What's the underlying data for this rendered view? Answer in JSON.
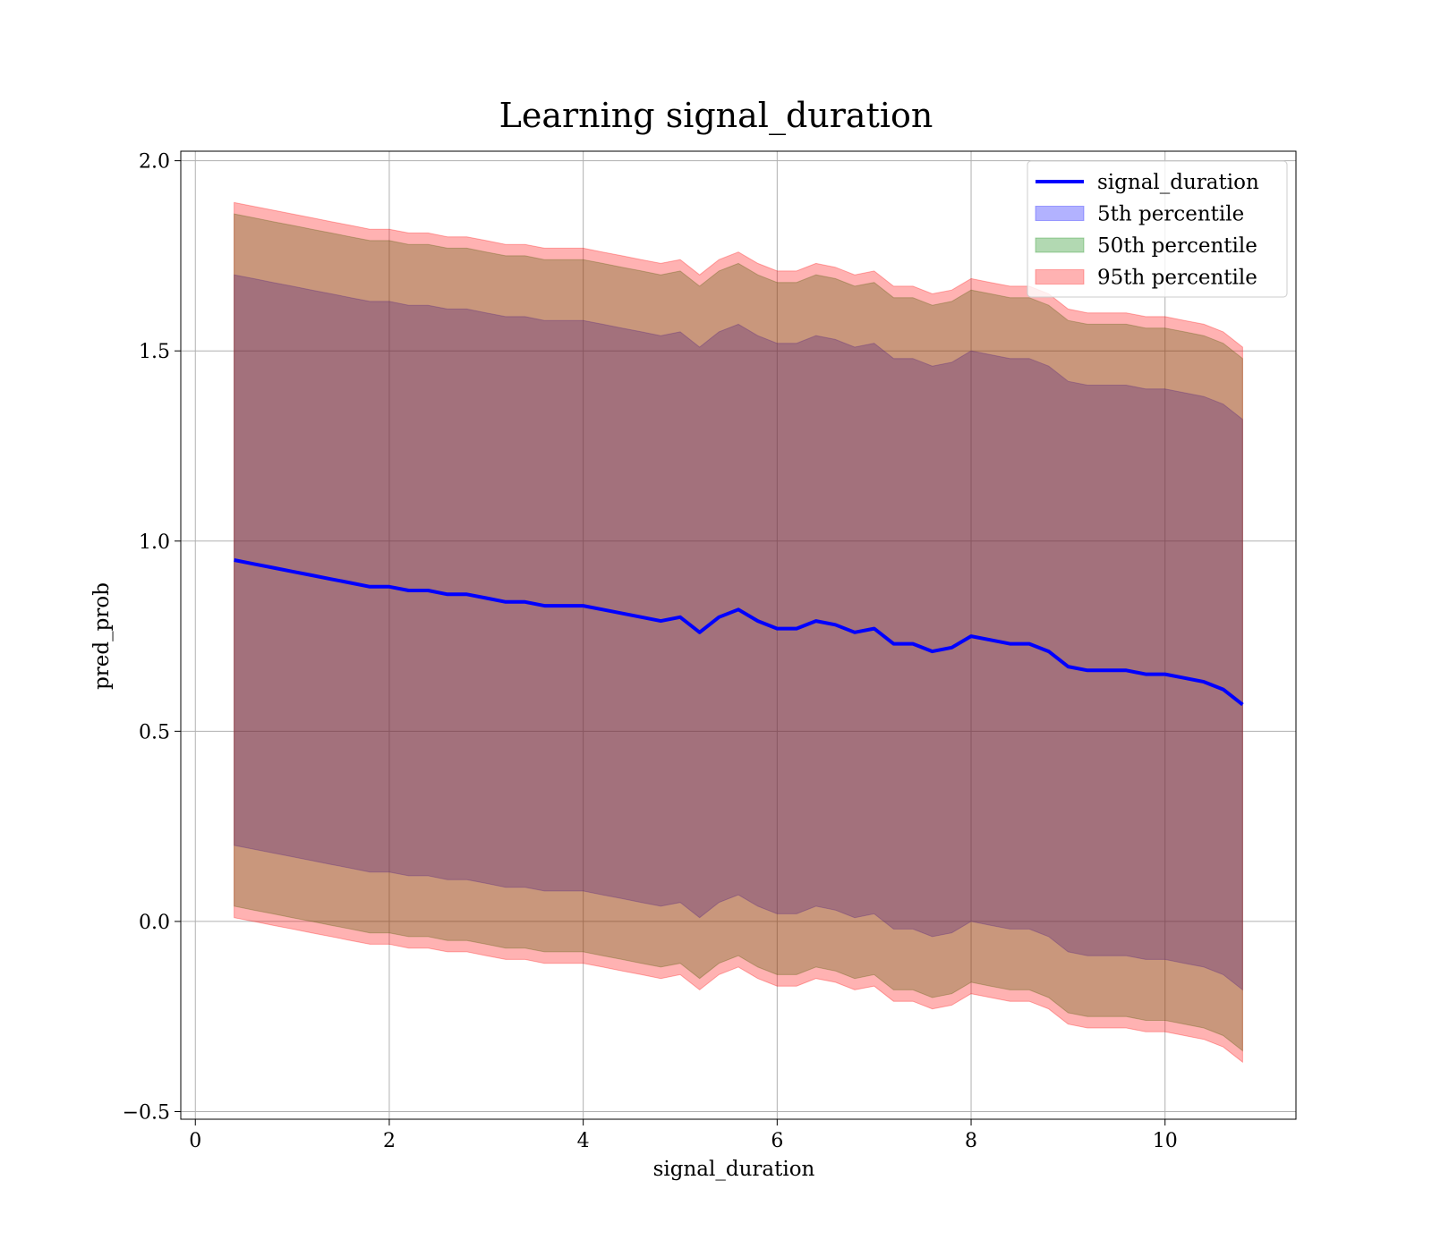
{
  "chart_data": {
    "type": "area",
    "title": "Learning signal_duration",
    "xlabel": "signal_duration",
    "ylabel": "pred_prob",
    "xlim": [
      -0.15,
      11.35
    ],
    "ylim": [
      -0.52,
      2.025
    ],
    "xticks": [
      0,
      2,
      4,
      6,
      8,
      10
    ],
    "xtick_labels": [
      "0",
      "2",
      "4",
      "6",
      "8",
      "10"
    ],
    "yticks": [
      -0.5,
      0.0,
      0.5,
      1.0,
      1.5,
      2.0
    ],
    "ytick_labels": [
      "−0.5",
      "0.0",
      "0.5",
      "1.0",
      "1.5",
      "2.0"
    ],
    "grid": true,
    "legend_position": "top-right",
    "x": [
      0.4,
      0.6,
      0.8,
      1.0,
      1.2,
      1.4,
      1.6,
      1.8,
      2.0,
      2.2,
      2.4,
      2.6,
      2.8,
      3.0,
      3.2,
      3.4,
      3.6,
      3.8,
      4.0,
      4.2,
      4.4,
      4.6,
      4.8,
      5.0,
      5.2,
      5.4,
      5.6,
      5.8,
      6.0,
      6.2,
      6.4,
      6.6,
      6.8,
      7.0,
      7.2,
      7.4,
      7.6,
      7.8,
      8.0,
      8.2,
      8.4,
      8.6,
      8.8,
      9.0,
      9.2,
      9.4,
      9.6,
      9.8,
      10.0,
      10.2,
      10.4,
      10.6,
      10.8
    ],
    "series": [
      {
        "name": "signal_duration",
        "kind": "line",
        "color": "#0000ff",
        "values": [
          0.95,
          0.94,
          0.93,
          0.92,
          0.91,
          0.9,
          0.89,
          0.88,
          0.88,
          0.87,
          0.87,
          0.86,
          0.86,
          0.85,
          0.84,
          0.84,
          0.83,
          0.83,
          0.83,
          0.82,
          0.81,
          0.8,
          0.79,
          0.8,
          0.76,
          0.8,
          0.82,
          0.79,
          0.77,
          0.77,
          0.79,
          0.78,
          0.76,
          0.77,
          0.73,
          0.73,
          0.71,
          0.72,
          0.75,
          0.74,
          0.73,
          0.73,
          0.71,
          0.67,
          0.66,
          0.66,
          0.66,
          0.65,
          0.65,
          0.64,
          0.63,
          0.61,
          0.57
        ]
      },
      {
        "name": "5th percentile",
        "kind": "band",
        "color": "#0000ff",
        "alpha": 0.3,
        "upper": [
          1.7,
          1.69,
          1.68,
          1.67,
          1.66,
          1.65,
          1.64,
          1.63,
          1.63,
          1.62,
          1.62,
          1.61,
          1.61,
          1.6,
          1.59,
          1.59,
          1.58,
          1.58,
          1.58,
          1.57,
          1.56,
          1.55,
          1.54,
          1.55,
          1.51,
          1.55,
          1.57,
          1.54,
          1.52,
          1.52,
          1.54,
          1.53,
          1.51,
          1.52,
          1.48,
          1.48,
          1.46,
          1.47,
          1.5,
          1.49,
          1.48,
          1.48,
          1.46,
          1.42,
          1.41,
          1.41,
          1.41,
          1.4,
          1.4,
          1.39,
          1.38,
          1.36,
          1.32
        ],
        "lower": [
          0.2,
          0.19,
          0.18,
          0.17,
          0.16,
          0.15,
          0.14,
          0.13,
          0.13,
          0.12,
          0.12,
          0.11,
          0.11,
          0.1,
          0.09,
          0.09,
          0.08,
          0.08,
          0.08,
          0.07,
          0.06,
          0.05,
          0.04,
          0.05,
          0.01,
          0.05,
          0.07,
          0.04,
          0.02,
          0.02,
          0.04,
          0.03,
          0.01,
          0.02,
          -0.02,
          -0.02,
          -0.04,
          -0.03,
          0.0,
          -0.01,
          -0.02,
          -0.02,
          -0.04,
          -0.08,
          -0.09,
          -0.09,
          -0.09,
          -0.1,
          -0.1,
          -0.11,
          -0.12,
          -0.14,
          -0.18
        ]
      },
      {
        "name": "50th percentile",
        "kind": "band",
        "color": "#008000",
        "alpha": 0.3,
        "upper": [
          1.86,
          1.85,
          1.84,
          1.83,
          1.82,
          1.81,
          1.8,
          1.79,
          1.79,
          1.78,
          1.78,
          1.77,
          1.77,
          1.76,
          1.75,
          1.75,
          1.74,
          1.74,
          1.74,
          1.73,
          1.72,
          1.71,
          1.7,
          1.71,
          1.67,
          1.71,
          1.73,
          1.7,
          1.68,
          1.68,
          1.7,
          1.69,
          1.67,
          1.68,
          1.64,
          1.64,
          1.62,
          1.63,
          1.66,
          1.65,
          1.64,
          1.64,
          1.62,
          1.58,
          1.57,
          1.57,
          1.57,
          1.56,
          1.56,
          1.55,
          1.54,
          1.52,
          1.48
        ],
        "lower": [
          0.04,
          0.03,
          0.02,
          0.01,
          0.0,
          -0.01,
          -0.02,
          -0.03,
          -0.03,
          -0.04,
          -0.04,
          -0.05,
          -0.05,
          -0.06,
          -0.07,
          -0.07,
          -0.08,
          -0.08,
          -0.08,
          -0.09,
          -0.1,
          -0.11,
          -0.12,
          -0.11,
          -0.15,
          -0.11,
          -0.09,
          -0.12,
          -0.14,
          -0.14,
          -0.12,
          -0.13,
          -0.15,
          -0.14,
          -0.18,
          -0.18,
          -0.2,
          -0.19,
          -0.16,
          -0.17,
          -0.18,
          -0.18,
          -0.2,
          -0.24,
          -0.25,
          -0.25,
          -0.25,
          -0.26,
          -0.26,
          -0.27,
          -0.28,
          -0.3,
          -0.34
        ]
      },
      {
        "name": "95th percentile",
        "kind": "band",
        "color": "#ff0000",
        "alpha": 0.3,
        "upper": [
          1.89,
          1.88,
          1.87,
          1.86,
          1.85,
          1.84,
          1.83,
          1.82,
          1.82,
          1.81,
          1.81,
          1.8,
          1.8,
          1.79,
          1.78,
          1.78,
          1.77,
          1.77,
          1.77,
          1.76,
          1.75,
          1.74,
          1.73,
          1.74,
          1.7,
          1.74,
          1.76,
          1.73,
          1.71,
          1.71,
          1.73,
          1.72,
          1.7,
          1.71,
          1.67,
          1.67,
          1.65,
          1.66,
          1.69,
          1.68,
          1.67,
          1.67,
          1.65,
          1.61,
          1.6,
          1.6,
          1.6,
          1.59,
          1.59,
          1.58,
          1.57,
          1.55,
          1.51
        ],
        "lower": [
          0.01,
          0.0,
          -0.01,
          -0.02,
          -0.03,
          -0.04,
          -0.05,
          -0.06,
          -0.06,
          -0.07,
          -0.07,
          -0.08,
          -0.08,
          -0.09,
          -0.1,
          -0.1,
          -0.11,
          -0.11,
          -0.11,
          -0.12,
          -0.13,
          -0.14,
          -0.15,
          -0.14,
          -0.18,
          -0.14,
          -0.12,
          -0.15,
          -0.17,
          -0.17,
          -0.15,
          -0.16,
          -0.18,
          -0.17,
          -0.21,
          -0.21,
          -0.23,
          -0.22,
          -0.19,
          -0.2,
          -0.21,
          -0.21,
          -0.23,
          -0.27,
          -0.28,
          -0.28,
          -0.28,
          -0.29,
          -0.29,
          -0.3,
          -0.31,
          -0.33,
          -0.37
        ]
      }
    ]
  }
}
